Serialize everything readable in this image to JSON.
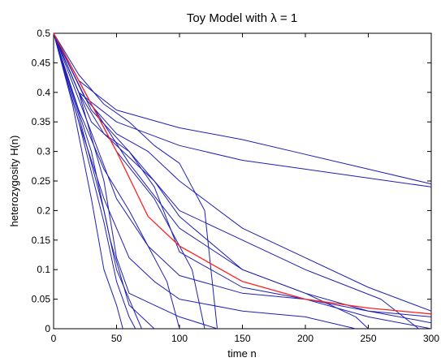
{
  "chart_data": {
    "type": "line",
    "title": "Toy Model with λ = 1",
    "xlabel": "time n",
    "ylabel": "heterozygosity H(n)",
    "xlim": [
      0,
      300
    ],
    "ylim": [
      0,
      0.5
    ],
    "xticks": [
      "0",
      "50",
      "100",
      "150",
      "200",
      "250",
      "300"
    ],
    "yticks": [
      "0",
      "0.05",
      "0.1",
      "0.15",
      "0.2",
      "0.25",
      "0.3",
      "0.35",
      "0.4",
      "0.45",
      "0.5"
    ],
    "grid": false,
    "legend": "none",
    "colors": {
      "simulation": "#1f1fb4",
      "mean": "#ff2020"
    },
    "series": [
      {
        "color": "#1f1fb4",
        "x": [
          0,
          20,
          50,
          100,
          150,
          200,
          250,
          300
        ],
        "y": [
          0.5,
          0.42,
          0.37,
          0.34,
          0.32,
          0.295,
          0.27,
          0.245
        ]
      },
      {
        "color": "#1f1fb4",
        "x": [
          0,
          20,
          50,
          100,
          150,
          200,
          250,
          300
        ],
        "y": [
          0.5,
          0.4,
          0.35,
          0.31,
          0.285,
          0.27,
          0.255,
          0.24
        ]
      },
      {
        "color": "#1f1fb4",
        "x": [
          0,
          25,
          50,
          75,
          100,
          150,
          200,
          250,
          300
        ],
        "y": [
          0.5,
          0.39,
          0.33,
          0.3,
          0.25,
          0.17,
          0.12,
          0.07,
          0.03
        ]
      },
      {
        "color": "#1f1fb4",
        "x": [
          0,
          30,
          60,
          100,
          150,
          200,
          260,
          290
        ],
        "y": [
          0.5,
          0.37,
          0.3,
          0.2,
          0.15,
          0.1,
          0.05,
          0.0
        ]
      },
      {
        "color": "#1f1fb4",
        "x": [
          0,
          30,
          50,
          80,
          100,
          150,
          200,
          250,
          300
        ],
        "y": [
          0.5,
          0.35,
          0.31,
          0.25,
          0.19,
          0.1,
          0.06,
          0.03,
          0.01
        ]
      },
      {
        "color": "#1f1fb4",
        "x": [
          0,
          20,
          40,
          60,
          80,
          100,
          150,
          200,
          250,
          300
        ],
        "y": [
          0.5,
          0.4,
          0.33,
          0.3,
          0.24,
          0.13,
          0.07,
          0.05,
          0.02,
          0.0
        ]
      },
      {
        "color": "#1f1fb4",
        "x": [
          0,
          20,
          40,
          60,
          80,
          100,
          120,
          130
        ],
        "y": [
          0.5,
          0.43,
          0.38,
          0.35,
          0.31,
          0.28,
          0.2,
          0.0
        ]
      },
      {
        "color": "#1f1fb4",
        "x": [
          0,
          30,
          50,
          80,
          100,
          110,
          120
        ],
        "y": [
          0.5,
          0.38,
          0.3,
          0.22,
          0.14,
          0.1,
          0.0
        ]
      },
      {
        "color": "#1f1fb4",
        "x": [
          0,
          20,
          40,
          60,
          75,
          90,
          100
        ],
        "y": [
          0.5,
          0.37,
          0.27,
          0.2,
          0.14,
          0.08,
          0.0
        ]
      },
      {
        "color": "#1f1fb4",
        "x": [
          0,
          20,
          40,
          60,
          80,
          100,
          150,
          200,
          240
        ],
        "y": [
          0.5,
          0.35,
          0.22,
          0.12,
          0.08,
          0.05,
          0.03,
          0.02,
          0.0
        ]
      },
      {
        "color": "#1f1fb4",
        "x": [
          0,
          20,
          40,
          50,
          60,
          70
        ],
        "y": [
          0.5,
          0.36,
          0.2,
          0.1,
          0.05,
          0.0
        ]
      },
      {
        "color": "#1f1fb4",
        "x": [
          0,
          15,
          30,
          40,
          50,
          55
        ],
        "y": [
          0.5,
          0.38,
          0.22,
          0.1,
          0.04,
          0.0
        ]
      },
      {
        "color": "#1f1fb4",
        "x": [
          0,
          20,
          40,
          50,
          60,
          80,
          100,
          130
        ],
        "y": [
          0.5,
          0.4,
          0.25,
          0.12,
          0.06,
          0.04,
          0.02,
          0.0
        ]
      },
      {
        "color": "#1f1fb4",
        "x": [
          0,
          25,
          50,
          75,
          100,
          150,
          200,
          250,
          300
        ],
        "y": [
          0.5,
          0.36,
          0.22,
          0.14,
          0.09,
          0.06,
          0.05,
          0.03,
          0.02
        ]
      },
      {
        "color": "#1f1fb4",
        "x": [
          0,
          30,
          60,
          100,
          150,
          200,
          240,
          250
        ],
        "y": [
          0.5,
          0.38,
          0.28,
          0.17,
          0.1,
          0.06,
          0.02,
          0.0
        ]
      },
      {
        "color": "#1f1fb4",
        "x": [
          0,
          20,
          40,
          50,
          60,
          65
        ],
        "y": [
          0.5,
          0.35,
          0.18,
          0.08,
          0.02,
          0.0
        ]
      },
      {
        "color": "#1f1fb4",
        "x": [
          0,
          15,
          30,
          45,
          60,
          80
        ],
        "y": [
          0.5,
          0.4,
          0.3,
          0.15,
          0.04,
          0.0
        ]
      },
      {
        "color": "#ff2020",
        "x": [
          0,
          25,
          50,
          75,
          100,
          150,
          200,
          250,
          300
        ],
        "y": [
          0.5,
          0.4,
          0.3,
          0.19,
          0.14,
          0.08,
          0.05,
          0.035,
          0.025
        ]
      }
    ]
  }
}
